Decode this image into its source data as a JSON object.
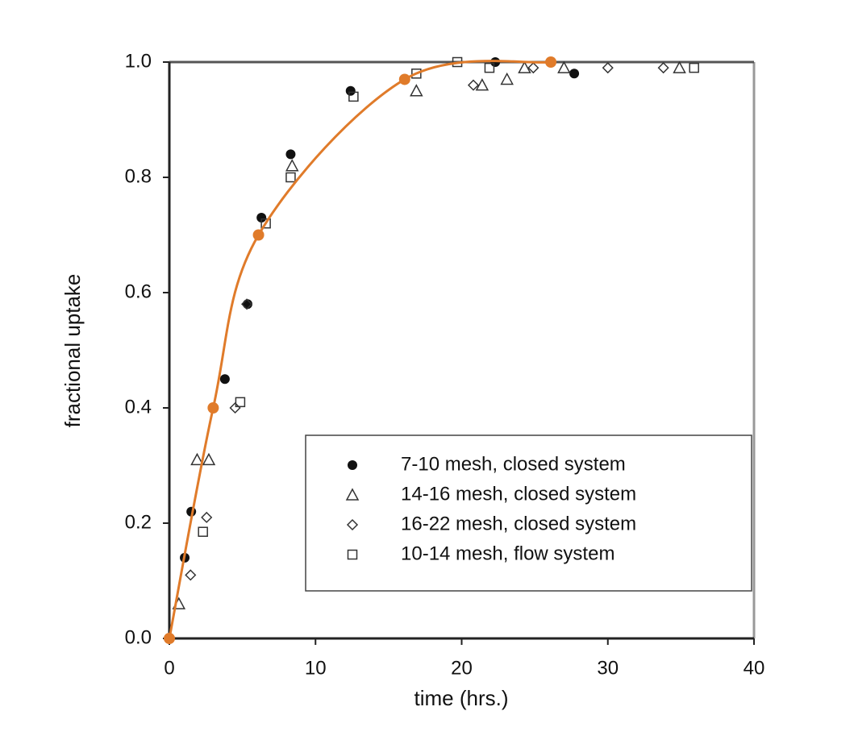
{
  "chart_data": {
    "type": "scatter",
    "xlabel": "time (hrs.)",
    "ylabel": "fractional uptake",
    "xlim": [
      0,
      40
    ],
    "ylim": [
      0.0,
      1.0
    ],
    "xticks": [
      0,
      10,
      20,
      30,
      40
    ],
    "yticks": [
      {
        "value": 0,
        "label": "0.0"
      },
      {
        "value": 0.2,
        "label": "0.2"
      },
      {
        "value": 0.4,
        "label": "0.4"
      },
      {
        "value": 0.6,
        "label": "0.6"
      },
      {
        "value": 0.8,
        "label": "0.8"
      },
      {
        "value": 1,
        "label": "1.0"
      }
    ],
    "legend": "lower right",
    "series": [
      {
        "name": "7-10 mesh, closed system",
        "marker": "filled-circle",
        "color": "#111111",
        "x": [
          1.05,
          1.5,
          3.8,
          5.35,
          6.3,
          8.3,
          12.4,
          22.3,
          27.7
        ],
        "values": [
          0.14,
          0.22,
          0.45,
          0.58,
          0.73,
          0.84,
          0.95,
          1.0,
          0.98
        ]
      },
      {
        "name": "14-16 mesh, closed system",
        "marker": "open-triangle",
        "color": "#333333",
        "x": [
          0.65,
          1.9,
          2.7,
          8.4,
          16.9,
          21.4,
          23.1,
          24.3,
          27,
          34.9
        ],
        "values": [
          0.06,
          0.31,
          0.31,
          0.82,
          0.95,
          0.96,
          0.97,
          0.99,
          0.99,
          0.99
        ]
      },
      {
        "name": "16-22 mesh, closed system",
        "marker": "open-diamond",
        "color": "#333333",
        "x": [
          1.45,
          2.55,
          4.5,
          5.3,
          20.8,
          24.9,
          30,
          33.8
        ],
        "values": [
          0.11,
          0.21,
          0.4,
          0.58,
          0.96,
          0.99,
          0.99,
          0.99
        ]
      },
      {
        "name": "10-14 mesh, flow system",
        "marker": "open-square",
        "color": "#333333",
        "x": [
          2.3,
          4.85,
          6.6,
          8.3,
          12.6,
          16.9,
          19.7,
          21.9,
          35.9
        ],
        "values": [
          0.185,
          0.41,
          0.72,
          0.8,
          0.94,
          0.98,
          1.0,
          0.99,
          0.99
        ]
      },
      {
        "type": "line",
        "marker": "dot",
        "color": "#e07b2a",
        "x": [
          0,
          3.0,
          6.1,
          16.1,
          26.1
        ],
        "values": [
          0,
          0.4,
          0.7,
          0.97,
          1.0
        ]
      }
    ]
  }
}
